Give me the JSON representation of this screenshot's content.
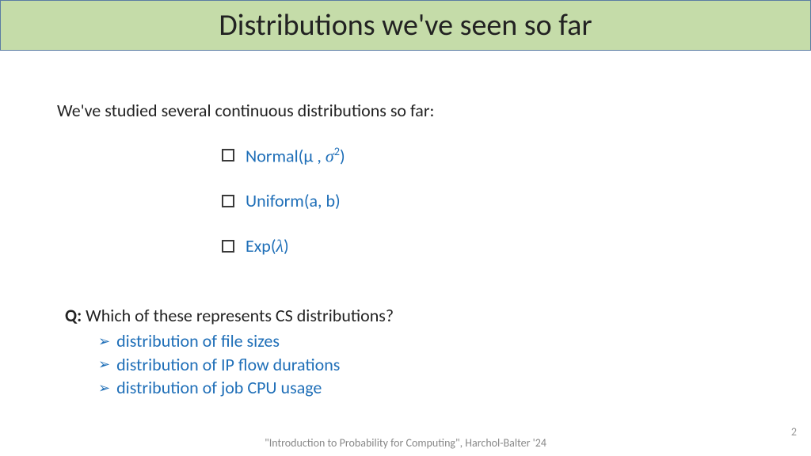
{
  "title": "Distributions we've seen so far",
  "intro": "We've studied several continuous distributions so far:",
  "distributions": [
    {
      "prefix": "Normal(",
      "param1": "µ ",
      "sep": ", ",
      "param2": "σ",
      "exp": "2",
      "suffix": ")"
    },
    {
      "prefix": "Uniform(a, b)",
      "param1": "",
      "sep": "",
      "param2": "",
      "exp": "",
      "suffix": ""
    },
    {
      "prefix": "Exp(",
      "param1": "",
      "sep": "",
      "param2": "λ",
      "exp": "",
      "suffix": ")"
    }
  ],
  "question_label": "Q:  ",
  "question_text": "Which of these represents CS distributions?",
  "answers": [
    "distribution of file sizes",
    "distribution of IP flow durations",
    "distribution of job CPU usage"
  ],
  "footer": "\"Introduction to Probability for Computing\", Harchol-Balter '24",
  "page": "2",
  "colors": {
    "title_bg": "#c5dca9",
    "title_border": "#5b7ca3",
    "accent": "#1f6fb8",
    "body_text": "#222222",
    "footer_text": "#888888"
  }
}
